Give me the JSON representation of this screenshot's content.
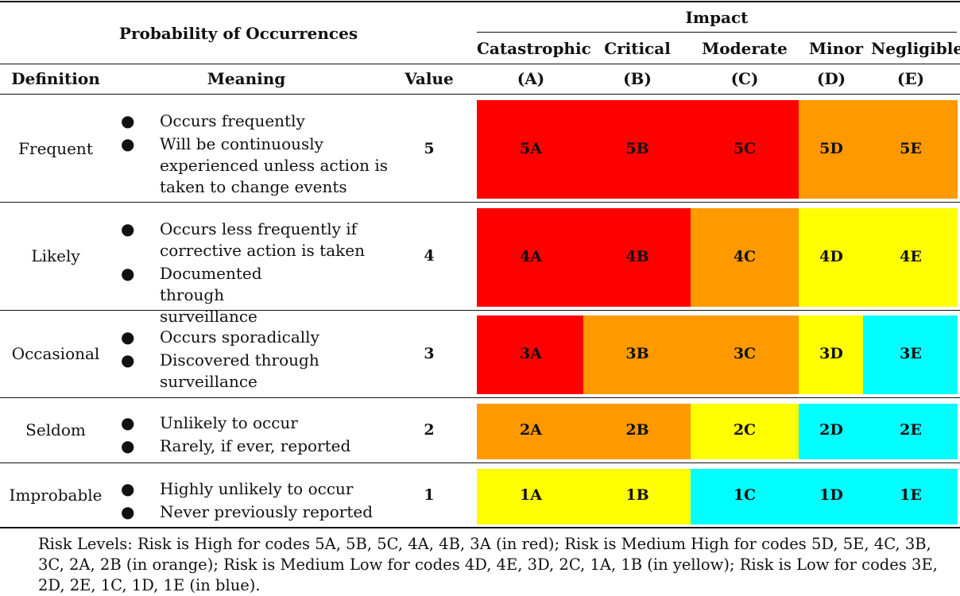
{
  "header": {
    "probability_title": "Probability of Occurrences",
    "impact_title": "Impact",
    "impact_columns": [
      {
        "name": "Catastrophic",
        "code": "(A)"
      },
      {
        "name": "Critical",
        "code": "(B)"
      },
      {
        "name": "Moderate",
        "code": "(C)"
      },
      {
        "name": "Minor",
        "code": "(D)"
      },
      {
        "name": "Negligible",
        "code": "(E)"
      }
    ],
    "definition_label": "Definition",
    "meaning_label": "Meaning",
    "value_label": "Value"
  },
  "colors": {
    "red": "#ff0000",
    "orange": "#ff9900",
    "yellow": "#ffff00",
    "blue": "#00ffff"
  },
  "rows": [
    {
      "definition": "Frequent",
      "meaning": [
        "Occurs frequently",
        "Will be continuously experienced unless action is taken to change events"
      ],
      "value": "5",
      "codes": [
        "5A",
        "5B",
        "5C",
        "5D",
        "5E"
      ],
      "levels": [
        "red",
        "red",
        "red",
        "orange",
        "orange"
      ]
    },
    {
      "definition": "Likely",
      "meaning": [
        "Occurs less frequently if corrective action is taken",
        "Documented through surveillance"
      ],
      "value": "4",
      "codes": [
        "4A",
        "4B",
        "4C",
        "4D",
        "4E"
      ],
      "levels": [
        "red",
        "red",
        "orange",
        "yellow",
        "yellow"
      ]
    },
    {
      "definition": "Occasional",
      "meaning": [
        "Occurs sporadically",
        "Discovered through surveillance"
      ],
      "value": "3",
      "codes": [
        "3A",
        "3B",
        "3C",
        "3D",
        "3E"
      ],
      "levels": [
        "red",
        "orange",
        "orange",
        "yellow",
        "blue"
      ]
    },
    {
      "definition": "Seldom",
      "meaning": [
        "Unlikely to occur",
        "Rarely, if ever, reported"
      ],
      "value": "2",
      "codes": [
        "2A",
        "2B",
        "2C",
        "2D",
        "2E"
      ],
      "levels": [
        "orange",
        "orange",
        "yellow",
        "blue",
        "blue"
      ]
    },
    {
      "definition": "Improbable",
      "meaning": [
        "Highly unlikely to occur",
        "Never previously reported"
      ],
      "value": "1",
      "codes": [
        "1A",
        "1B",
        "1C",
        "1D",
        "1E"
      ],
      "levels": [
        "yellow",
        "yellow",
        "blue",
        "blue",
        "blue"
      ]
    }
  ],
  "note": "Risk Levels: Risk is High for codes 5A, 5B, 5C, 4A, 4B, 3A (in red); Risk is Medium High for codes 5D, 5E, 4C, 3B, 3C, 2A, 2B (in orange); Risk is Medium Low for codes 4D, 4E, 3D, 2C, 1A, 1B (in yellow); Risk is Low for codes 3E, 2D, 2E, 1C, 1D, 1E (in blue)."
}
